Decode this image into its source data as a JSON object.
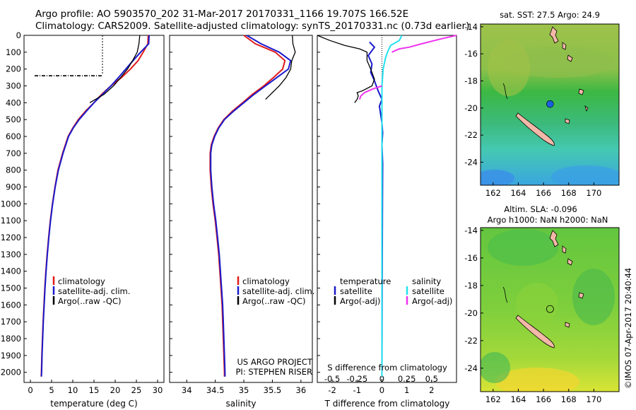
{
  "header": {
    "line1": "Argo profile: AO 5903570_202 31-Mar-2017 20170331_1166 19.707S 166.52E",
    "line2": "Climatology: CARS2009. Satellite-adjusted climatology: synTS_20170331.nc (0.73d earlier)"
  },
  "colors": {
    "climatology": "#e21a1a",
    "satellite": "#1a1acc",
    "argo": "#000000",
    "satellite_salinity": "#22e0ee",
    "argo_salinity": "#ee33ee"
  },
  "credit": {
    "project": "US ARGO PROJECT",
    "pi": "PI: STEPHEN RISER"
  },
  "stamp": "©IMOS 07-Apr-2017 20:40:44",
  "chart_data": [
    {
      "id": "temperature",
      "type": "line",
      "xlabel": "temperature (deg C)",
      "ylabel": "",
      "xlim": [
        -1.5,
        31.5
      ],
      "ylim": [
        2060,
        0
      ],
      "yticks": [
        0,
        100,
        200,
        300,
        400,
        500,
        600,
        700,
        800,
        900,
        1000,
        1100,
        1200,
        1300,
        1400,
        1500,
        1600,
        1700,
        1800,
        1900,
        2000
      ],
      "xticks": [
        0,
        5,
        10,
        15,
        20,
        25,
        30
      ],
      "legend": [
        "climatology",
        "satellite-adj. clim.",
        "Argo(..raw -QC)"
      ],
      "series": [
        {
          "name": "climatology",
          "color": "#e21a1a",
          "points": [
            [
              27.8,
              0
            ],
            [
              27.7,
              50
            ],
            [
              26.6,
              100
            ],
            [
              25.4,
              150
            ],
            [
              23.6,
              200
            ],
            [
              21.5,
              250
            ],
            [
              19.0,
              300
            ],
            [
              16.8,
              350
            ],
            [
              15.0,
              400
            ],
            [
              13.0,
              450
            ],
            [
              11.3,
              500
            ],
            [
              10.0,
              550
            ],
            [
              8.9,
              600
            ],
            [
              7.6,
              700
            ],
            [
              6.5,
              800
            ],
            [
              5.8,
              900
            ],
            [
              5.2,
              1000
            ],
            [
              4.7,
              1100
            ],
            [
              4.3,
              1200
            ],
            [
              3.95,
              1300
            ],
            [
              3.65,
              1400
            ],
            [
              3.4,
              1500
            ],
            [
              3.2,
              1600
            ],
            [
              3.0,
              1700
            ],
            [
              2.85,
              1800
            ],
            [
              2.7,
              1900
            ],
            [
              2.6,
              2000
            ],
            [
              2.55,
              2025
            ]
          ]
        },
        {
          "name": "satellite-adj. clim.",
          "color": "#1a1acc",
          "points": [
            [
              28.0,
              0
            ],
            [
              27.9,
              50
            ],
            [
              26.0,
              100
            ],
            [
              24.2,
              150
            ],
            [
              22.5,
              200
            ],
            [
              20.8,
              250
            ],
            [
              19.0,
              300
            ],
            [
              17.0,
              350
            ],
            [
              15.0,
              400
            ],
            [
              13.2,
              450
            ],
            [
              11.5,
              500
            ],
            [
              10.1,
              550
            ],
            [
              9.0,
              600
            ],
            [
              7.7,
              700
            ],
            [
              6.6,
              800
            ],
            [
              5.85,
              900
            ],
            [
              5.25,
              1000
            ],
            [
              4.75,
              1100
            ],
            [
              4.35,
              1200
            ],
            [
              4.0,
              1300
            ],
            [
              3.7,
              1400
            ],
            [
              3.45,
              1500
            ],
            [
              3.25,
              1600
            ],
            [
              3.05,
              1700
            ],
            [
              2.9,
              1800
            ],
            [
              2.75,
              1900
            ],
            [
              2.65,
              2000
            ],
            [
              2.6,
              2025
            ]
          ]
        },
        {
          "name": "Argo(..raw -QC)",
          "color": "#000000",
          "points": [
            [
              25.8,
              0
            ],
            [
              25.6,
              50
            ],
            [
              25.2,
              100
            ],
            [
              24.1,
              150
            ],
            [
              22.9,
              200
            ],
            [
              21.3,
              250
            ],
            [
              19.6,
              300
            ],
            [
              17.4,
              350
            ],
            [
              14.0,
              400
            ]
          ]
        }
      ],
      "annotations": {
        "dotted_vertical_x": 17.0,
        "dotted_vertical_y": [
          0,
          235
        ],
        "dash_dot_horizontal_y": 240,
        "dash_dot_horizontal_x": [
          1.0,
          17.0
        ]
      }
    },
    {
      "id": "salinity",
      "type": "line",
      "xlabel": "salinity",
      "ylabel": "",
      "xlim": [
        33.7,
        36.2
      ],
      "ylim": [
        2060,
        0
      ],
      "xticks": [
        34,
        34.5,
        35,
        35.5,
        36
      ],
      "legend": [
        "climatology",
        "satellite-adj. clim.",
        "Argo(..raw -QC)"
      ],
      "series": [
        {
          "name": "climatology",
          "color": "#e21a1a",
          "points": [
            [
              35.0,
              0
            ],
            [
              35.2,
              50
            ],
            [
              35.55,
              100
            ],
            [
              35.72,
              150
            ],
            [
              35.68,
              200
            ],
            [
              35.52,
              250
            ],
            [
              35.35,
              300
            ],
            [
              35.15,
              350
            ],
            [
              34.98,
              400
            ],
            [
              34.8,
              450
            ],
            [
              34.65,
              500
            ],
            [
              34.55,
              550
            ],
            [
              34.48,
              600
            ],
            [
              34.43,
              650
            ],
            [
              34.41,
              700
            ],
            [
              34.41,
              800
            ],
            [
              34.43,
              900
            ],
            [
              34.46,
              1000
            ],
            [
              34.5,
              1100
            ],
            [
              34.53,
              1200
            ],
            [
              34.56,
              1300
            ],
            [
              34.58,
              1400
            ],
            [
              34.6,
              1500
            ],
            [
              34.62,
              1600
            ],
            [
              34.63,
              1700
            ],
            [
              34.64,
              1800
            ],
            [
              34.65,
              1900
            ],
            [
              34.66,
              2000
            ],
            [
              34.66,
              2025
            ]
          ]
        },
        {
          "name": "satellite-adj. clim.",
          "color": "#1a1acc",
          "points": [
            [
              35.05,
              0
            ],
            [
              35.3,
              50
            ],
            [
              35.62,
              100
            ],
            [
              35.82,
              150
            ],
            [
              35.78,
              200
            ],
            [
              35.58,
              250
            ],
            [
              35.38,
              300
            ],
            [
              35.18,
              350
            ],
            [
              35.0,
              400
            ],
            [
              34.82,
              450
            ],
            [
              34.66,
              500
            ],
            [
              34.56,
              550
            ],
            [
              34.49,
              600
            ],
            [
              34.44,
              650
            ],
            [
              34.42,
              700
            ],
            [
              34.42,
              800
            ],
            [
              34.44,
              900
            ],
            [
              34.47,
              1000
            ],
            [
              34.51,
              1100
            ],
            [
              34.54,
              1200
            ],
            [
              34.57,
              1300
            ],
            [
              34.59,
              1400
            ],
            [
              34.61,
              1500
            ],
            [
              34.63,
              1600
            ],
            [
              34.64,
              1700
            ],
            [
              34.65,
              1800
            ],
            [
              34.66,
              1900
            ],
            [
              34.67,
              2000
            ],
            [
              34.67,
              2025
            ]
          ]
        },
        {
          "name": "Argo(..raw -QC)",
          "color": "#000000",
          "points": [
            [
              35.85,
              0
            ],
            [
              35.86,
              50
            ],
            [
              35.9,
              100
            ],
            [
              35.84,
              150
            ],
            [
              35.82,
              200
            ],
            [
              35.74,
              250
            ],
            [
              35.62,
              300
            ],
            [
              35.5,
              340
            ],
            [
              35.38,
              380
            ]
          ]
        }
      ]
    },
    {
      "id": "differences",
      "type": "line",
      "xlabel": "T difference from climatology",
      "top_label": "S difference from climatology",
      "ylabel": "",
      "xlim": [
        -2.6,
        3.0
      ],
      "ylim": [
        2060,
        0
      ],
      "xticks": [
        -2,
        -1,
        0,
        1,
        2
      ],
      "top_ticks": [
        "-0.5",
        "-0.25",
        "0",
        "0.25",
        "0.5"
      ],
      "legend": [
        {
          "group": "temperature",
          "label": "satellite",
          "color": "#1a1acc"
        },
        {
          "group": "temperature",
          "label": "Argo(-adj)",
          "color": "#000000"
        },
        {
          "group": "salinity",
          "label": "satellite",
          "color": "#22e0ee"
        },
        {
          "group": "salinity",
          "label": "Argo(-adj)",
          "color": "#ee33ee"
        }
      ],
      "legend_headers": [
        "temperature",
        "salinity"
      ],
      "series": [
        {
          "name": "temperature satellite",
          "color": "#1a1acc",
          "points": [
            [
              -0.5,
              40
            ],
            [
              -0.3,
              70
            ],
            [
              -0.55,
              120
            ],
            [
              -0.4,
              170
            ],
            [
              -0.45,
              220
            ],
            [
              -0.3,
              270
            ],
            [
              -0.15,
              330
            ],
            [
              0.0,
              380
            ],
            [
              -0.1,
              420
            ],
            [
              -0.05,
              470
            ],
            [
              0.0,
              520
            ],
            [
              0.03,
              580
            ],
            [
              0.0,
              650
            ],
            [
              0.03,
              760
            ],
            [
              0.02,
              1000
            ],
            [
              0.01,
              1500
            ],
            [
              0.0,
              2000
            ]
          ]
        },
        {
          "name": "temperature Argo(-adj)",
          "color": "#000000",
          "points": [
            [
              -2.6,
              0
            ],
            [
              -2.1,
              30
            ],
            [
              -1.5,
              60
            ],
            [
              -0.9,
              80
            ],
            [
              -0.6,
              100
            ],
            [
              -0.6,
              150
            ],
            [
              -0.45,
              200
            ],
            [
              -0.3,
              260
            ],
            [
              -0.4,
              300
            ],
            [
              -0.8,
              330
            ],
            [
              -1.0,
              340
            ],
            [
              -0.95,
              360
            ],
            [
              -1.0,
              380
            ],
            [
              -1.1,
              400
            ]
          ]
        },
        {
          "name": "salinity satellite",
          "color": "#22e0ee",
          "points": [
            [
              0.8,
              0
            ],
            [
              0.7,
              30
            ],
            [
              0.35,
              60
            ],
            [
              0.25,
              90
            ],
            [
              0.15,
              130
            ],
            [
              0.05,
              200
            ],
            [
              0.0,
              300
            ],
            [
              0.0,
              500
            ],
            [
              0.0,
              1000
            ],
            [
              0.0,
              1500
            ],
            [
              0.0,
              2000
            ],
            [
              0.0,
              2025
            ]
          ]
        },
        {
          "name": "salinity Argo(-adj)",
          "color": "#ee33ee",
          "points": [
            [
              3.0,
              0
            ],
            [
              2.4,
              20
            ],
            [
              1.6,
              50
            ],
            [
              1.1,
              70
            ],
            [
              0.7,
              80
            ],
            [
              0.4,
              100
            ]
          ]
        },
        {
          "name": "salinity Argo(-adj) deep",
          "color": "#ee33ee",
          "points": [
            [
              0.0,
              300
            ],
            [
              -0.4,
              320
            ],
            [
              -0.7,
              340
            ],
            [
              -0.85,
              360
            ],
            [
              -0.9,
              380
            ]
          ]
        }
      ],
      "zero_line": true
    },
    {
      "id": "sst_map",
      "type": "heatmap",
      "title": "sat. SST: 27.5  Argo: 24.9",
      "xlim": [
        161,
        172
      ],
      "ylim": [
        -25.7,
        -13.8
      ],
      "xticks": [
        162,
        164,
        166,
        168,
        170
      ],
      "yticks": [
        -14,
        -16,
        -18,
        -20,
        -22,
        -24
      ],
      "marker": {
        "lon": 166.52,
        "lat": -19.707,
        "color": "#1a5fdd"
      }
    },
    {
      "id": "sla_map",
      "type": "heatmap",
      "title_line1": "Altim. SLA: -0.096",
      "title_line2": "Argo h1000: NaN h2000: NaN",
      "xlim": [
        161,
        172
      ],
      "ylim": [
        -25.7,
        -13.8
      ],
      "xticks": [
        162,
        164,
        166,
        168,
        170
      ],
      "yticks": [
        -14,
        -16,
        -18,
        -20,
        -22,
        -24
      ],
      "marker": {
        "lon": 166.52,
        "lat": -19.707,
        "color": "none"
      }
    }
  ]
}
